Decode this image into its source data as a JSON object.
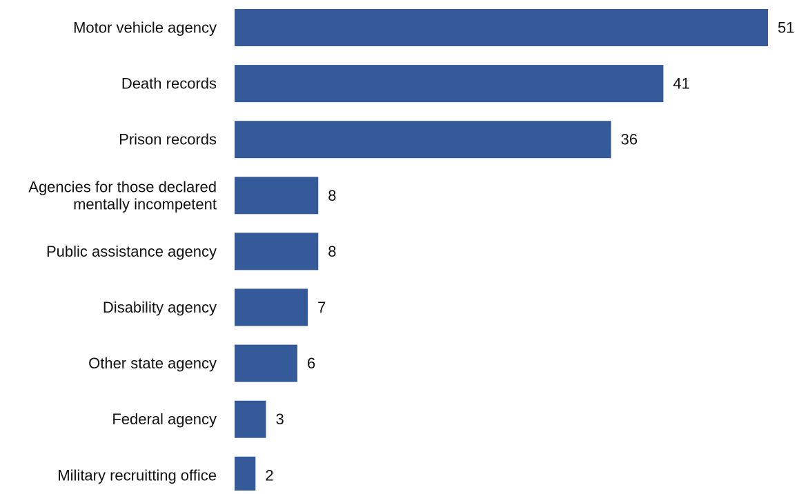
{
  "chart_data": {
    "type": "bar",
    "orientation": "horizontal",
    "categories": [
      "Motor vehicle agency",
      "Death records",
      "Prison records",
      "Agencies for those declared mentally incompetent",
      "Public assistance agency",
      "Disability agency",
      "Other state agency",
      "Federal agency",
      "Military recruitting office"
    ],
    "category_display_lines": [
      [
        "Motor vehicle agency"
      ],
      [
        "Death records"
      ],
      [
        "Prison records"
      ],
      [
        "Agencies for those declared",
        "mentally incompetent"
      ],
      [
        "Public assistance agency"
      ],
      [
        "Disability agency"
      ],
      [
        "Other state agency"
      ],
      [
        "Federal agency"
      ],
      [
        "Military recruitting office"
      ]
    ],
    "values": [
      51,
      41,
      36,
      8,
      8,
      7,
      6,
      3,
      2
    ],
    "title": "",
    "xlabel": "",
    "ylabel": "",
    "xlim": [
      0,
      51
    ],
    "grid": false,
    "legend": "none",
    "data_labels": true,
    "bar_color": "#345A99"
  }
}
